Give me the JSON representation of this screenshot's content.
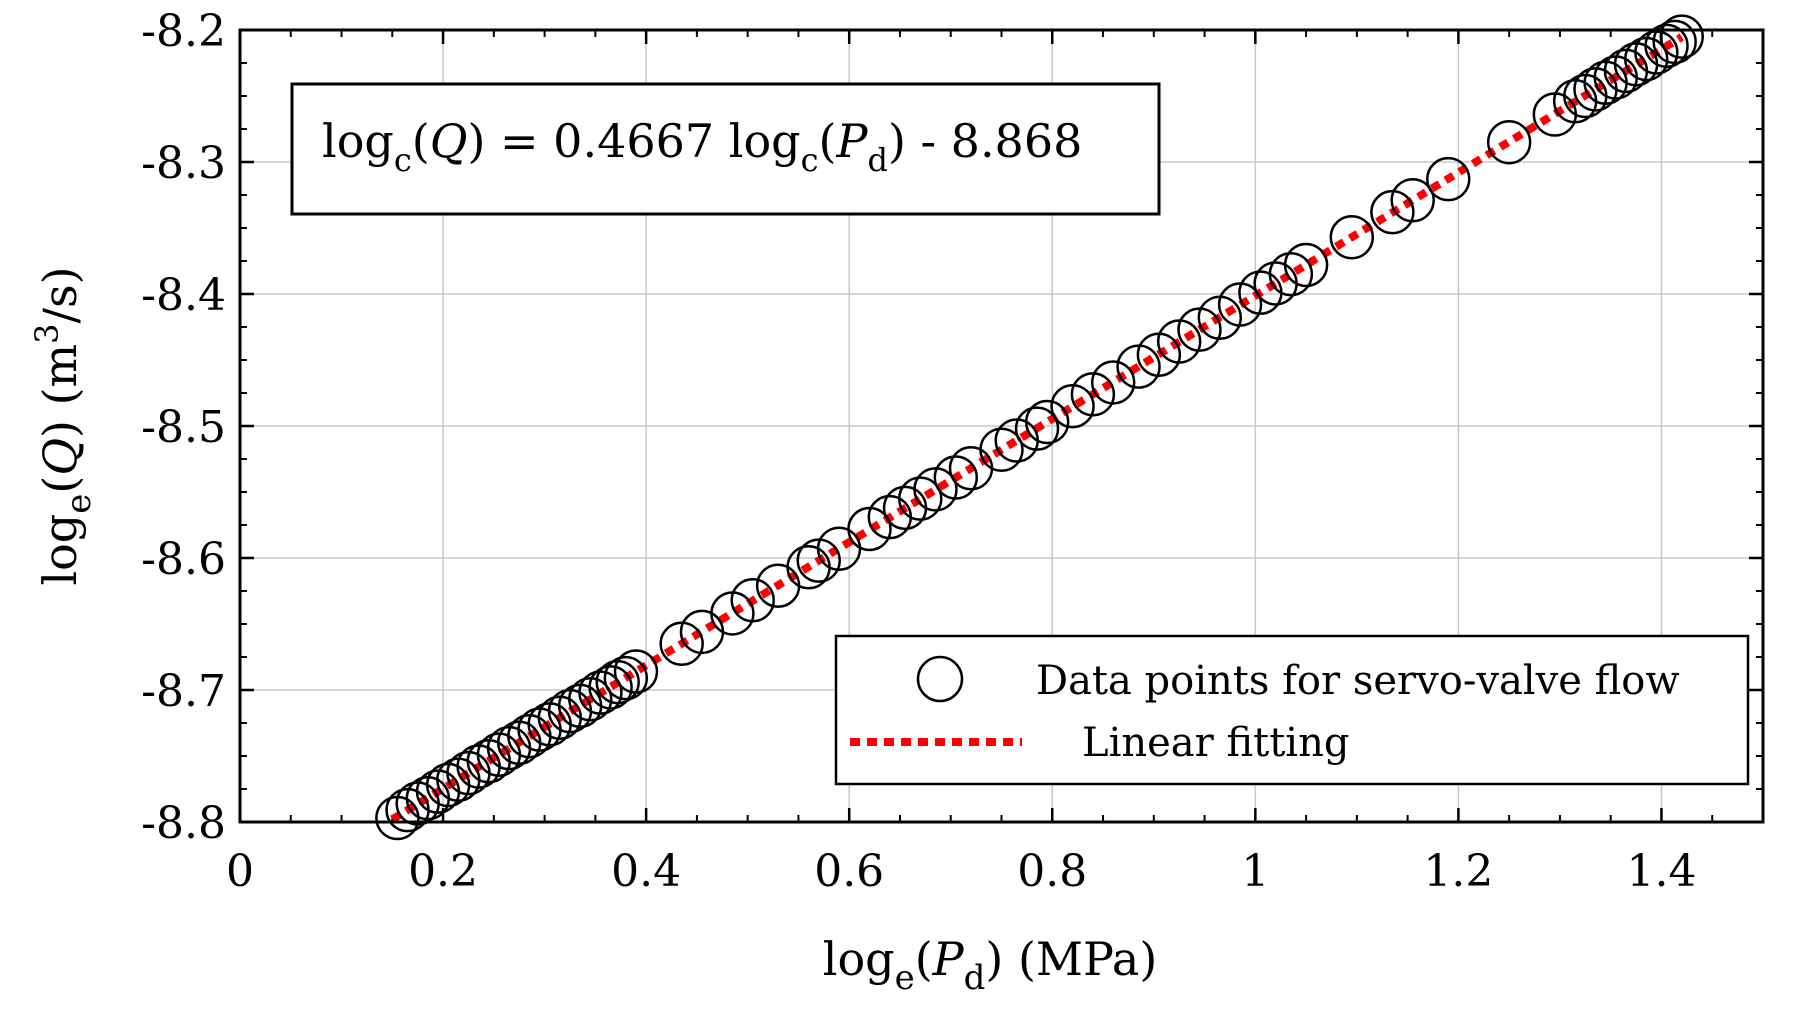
{
  "chart_data": {
    "type": "scatter",
    "title": "",
    "xlabel": {
      "prefix": "log",
      "sub": "e",
      "open": "(",
      "var": "P",
      "var_sub": "d",
      "close": ") (MPa)"
    },
    "ylabel": {
      "prefix": "log",
      "sub": "e",
      "open": "(",
      "var": "Q",
      "close": ") (m",
      "sup": "3",
      "tail": "/s)"
    },
    "xlim": [
      0,
      1.5
    ],
    "ylim": [
      -8.8,
      -8.2
    ],
    "x_ticks": [
      0,
      0.2,
      0.4,
      0.6,
      0.8,
      1,
      1.2,
      1.4
    ],
    "x_tick_labels": [
      "0",
      "0.2",
      "0.4",
      "0.6",
      "0.8",
      "1",
      "1.2",
      "1.4"
    ],
    "y_ticks": [
      -8.8,
      -8.7,
      -8.6,
      -8.5,
      -8.4,
      -8.3,
      -8.2
    ],
    "y_tick_labels": [
      "-8.8",
      "-8.7",
      "-8.6",
      "-8.5",
      "-8.4",
      "-8.3",
      "-8.2"
    ],
    "grid": true,
    "equation": {
      "p1": "log",
      "p1_sub": "c",
      "p2": "(",
      "p3": "Q",
      "p4": ") = 0.4667 log",
      "p5_sub": "c",
      "p6": "(",
      "p7": "P",
      "p7_sub": "d",
      "p8": ") - 8.868"
    },
    "fit": {
      "slope": 0.4667,
      "intercept": -8.868,
      "x_range": [
        0.15,
        1.42
      ]
    },
    "series": [
      {
        "name": "Data points for servo-valve flow",
        "marker": "open-circle",
        "color": "#000000",
        "x": [
          0.155,
          0.165,
          0.175,
          0.185,
          0.195,
          0.205,
          0.215,
          0.225,
          0.235,
          0.245,
          0.255,
          0.265,
          0.275,
          0.285,
          0.295,
          0.305,
          0.315,
          0.325,
          0.335,
          0.345,
          0.355,
          0.365,
          0.372,
          0.38,
          0.39,
          0.435,
          0.455,
          0.485,
          0.505,
          0.53,
          0.56,
          0.57,
          0.59,
          0.62,
          0.64,
          0.655,
          0.67,
          0.685,
          0.705,
          0.72,
          0.75,
          0.765,
          0.785,
          0.795,
          0.82,
          0.84,
          0.86,
          0.885,
          0.905,
          0.925,
          0.945,
          0.965,
          0.985,
          1.005,
          1.02,
          1.035,
          1.05,
          1.095,
          1.135,
          1.155,
          1.19,
          1.25,
          1.295,
          1.315,
          1.325,
          1.335,
          1.345,
          1.355,
          1.365,
          1.375,
          1.385,
          1.395,
          1.405,
          1.413,
          1.42
        ],
        "y": [
          -8.797,
          -8.791,
          -8.786,
          -8.782,
          -8.777,
          -8.772,
          -8.768,
          -8.763,
          -8.758,
          -8.754,
          -8.749,
          -8.744,
          -8.74,
          -8.735,
          -8.73,
          -8.726,
          -8.721,
          -8.716,
          -8.712,
          -8.707,
          -8.702,
          -8.698,
          -8.694,
          -8.691,
          -8.686,
          -8.665,
          -8.656,
          -8.642,
          -8.632,
          -8.621,
          -8.607,
          -8.602,
          -8.593,
          -8.578,
          -8.569,
          -8.562,
          -8.555,
          -8.548,
          -8.539,
          -8.532,
          -8.518,
          -8.511,
          -8.502,
          -8.497,
          -8.485,
          -8.476,
          -8.467,
          -8.455,
          -8.446,
          -8.436,
          -8.427,
          -8.418,
          -8.408,
          -8.399,
          -8.392,
          -8.385,
          -8.378,
          -8.357,
          -8.338,
          -8.329,
          -8.313,
          -8.285,
          -8.264,
          -8.254,
          -8.25,
          -8.245,
          -8.24,
          -8.236,
          -8.231,
          -8.226,
          -8.222,
          -8.217,
          -8.212,
          -8.209,
          -8.205
        ]
      },
      {
        "name": "Linear fitting",
        "marker": "dotted-line",
        "color": "#ff0000"
      }
    ],
    "legend_position": "bottom-right"
  }
}
